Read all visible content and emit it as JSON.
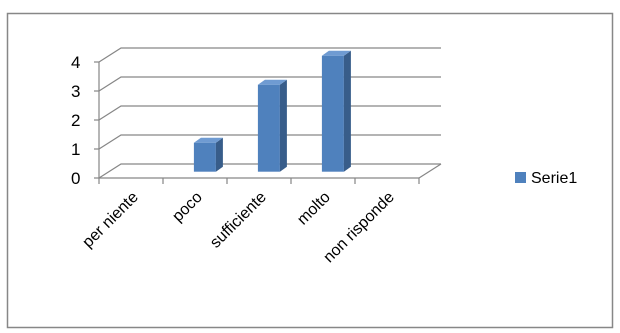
{
  "chart_data": {
    "type": "bar",
    "categories": [
      "per niente",
      "poco",
      "sufficiente",
      "molto",
      "non risponde"
    ],
    "series": [
      {
        "name": "Serie1",
        "values": [
          0,
          1,
          3,
          4,
          0
        ]
      }
    ],
    "title": "",
    "xlabel": "",
    "ylabel": "",
    "ylim": [
      0,
      4
    ],
    "yticks": [
      "0",
      "1",
      "2",
      "3",
      "4"
    ],
    "grid": true,
    "legend_position": "right",
    "colors": {
      "bar_front": "#4F81BD",
      "bar_side": "#385D8A",
      "bar_top": "#6F9BD2",
      "grid": "#868686",
      "frame": "#878787"
    }
  }
}
